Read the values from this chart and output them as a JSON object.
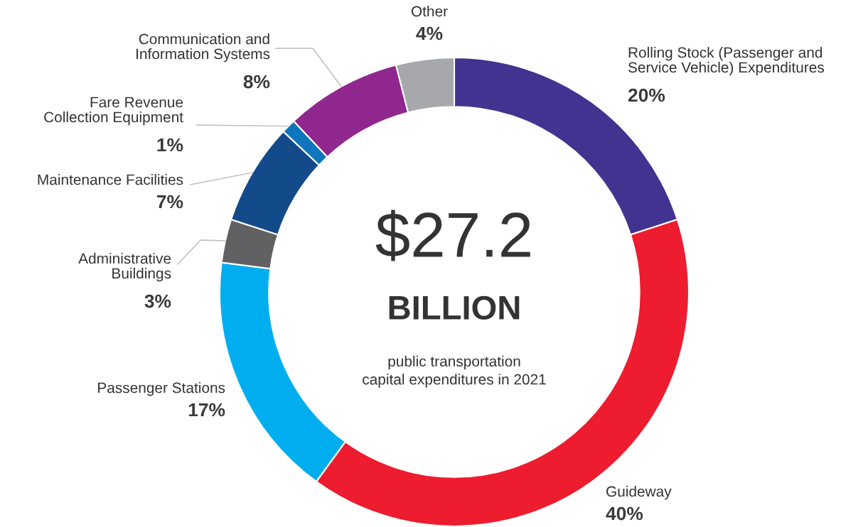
{
  "chart_data": {
    "type": "donut",
    "categories": [
      "Rolling Stock (Passenger and\nService Vehicle) Expenditures",
      "Guideway",
      "Passenger Stations",
      "Administrative\nBuildings",
      "Maintenance Facilities",
      "Fare Revenue\nCollection Equipment",
      "Communication and\nInformation Systems",
      "Other"
    ],
    "values": [
      20,
      40,
      17,
      3,
      7,
      1,
      8,
      4
    ],
    "value_labels": [
      "20%",
      "40%",
      "17%",
      "3%",
      "7%",
      "1%",
      "8%",
      "4%"
    ],
    "colors": [
      "#41338f",
      "#ed1c2e",
      "#00aeef",
      "#616163",
      "#134a8a",
      "#0f75bc",
      "#8f278e",
      "#a6a8ab"
    ],
    "annotations": [
      "$27.2",
      "BILLION",
      "public transportation\ncapital expenditures in 2021"
    ],
    "legend": false
  }
}
